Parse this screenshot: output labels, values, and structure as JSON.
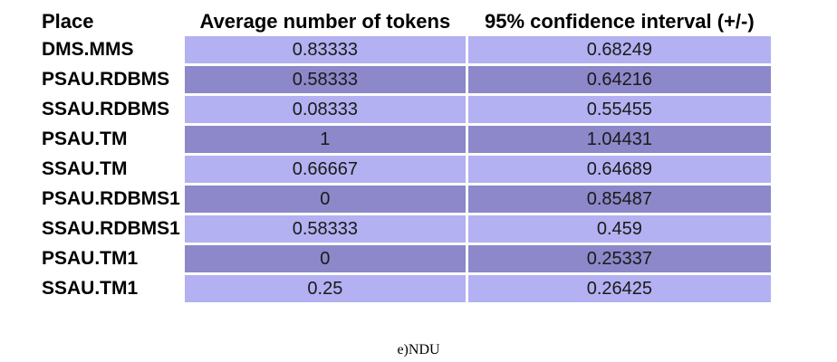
{
  "table": {
    "headers": {
      "place": "Place",
      "avg_tokens": "Average number of tokens",
      "confidence": "95% confidence interval (+/-)"
    },
    "rows": [
      {
        "place": "DMS.MMS",
        "avg": "0.83333",
        "ci": "0.68249"
      },
      {
        "place": "PSAU.RDBMS",
        "avg": "0.58333",
        "ci": "0.64216"
      },
      {
        "place": "SSAU.RDBMS",
        "avg": "0.08333",
        "ci": "0.55455"
      },
      {
        "place": "PSAU.TM",
        "avg": "1",
        "ci": "1.04431"
      },
      {
        "place": "SSAU.TM",
        "avg": "0.66667",
        "ci": "0.64689"
      },
      {
        "place": "PSAU.RDBMS1",
        "avg": "0",
        "ci": "0.85487"
      },
      {
        "place": "SSAU.RDBMS1",
        "avg": "0.58333",
        "ci": "0.459"
      },
      {
        "place": "PSAU.TM1",
        "avg": "0",
        "ci": "0.25337"
      },
      {
        "place": "SSAU.TM1",
        "avg": "0.25",
        "ci": "0.26425"
      }
    ]
  },
  "caption": "e)NDU",
  "colors": {
    "row_light": "#b3b1f1",
    "row_dark": "#8c88c9"
  }
}
